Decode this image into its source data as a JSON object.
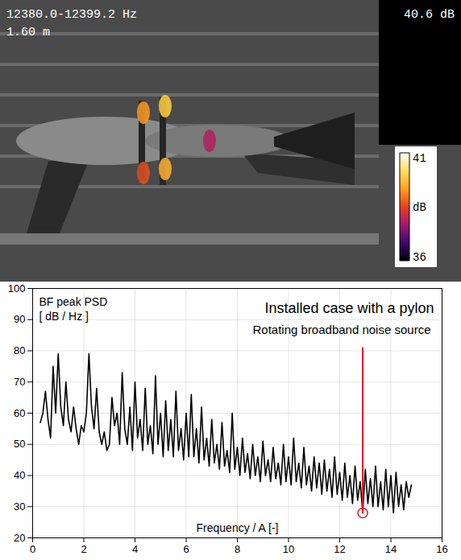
{
  "chart_data": [
    {
      "type": "beamforming_map",
      "annotations": [
        "12380.0-12399.2 Hz",
        "1.60 m",
        "40.6 dB"
      ],
      "colorbar": {
        "label": "dB",
        "range": [
          36,
          41
        ],
        "ticks": [
          36,
          41
        ]
      }
    },
    {
      "type": "line",
      "title": "Installed case with a pylon",
      "y_label": [
        "BF peak PSD",
        "[ dB / Hz ]"
      ],
      "x_label": "Frequency / A [-]",
      "color": "#000000",
      "grid": true,
      "xlim": [
        0,
        16
      ],
      "xticks": [
        0,
        2,
        4,
        6,
        8,
        10,
        12,
        14,
        16
      ],
      "ylim": [
        20,
        100
      ],
      "yticks": [
        20,
        30,
        40,
        50,
        60,
        70,
        80,
        90,
        100
      ],
      "x": [
        0.3,
        0.4,
        0.5,
        0.6,
        0.7,
        0.8,
        0.9,
        1.0,
        1.1,
        1.2,
        1.3,
        1.4,
        1.5,
        1.6,
        1.7,
        1.8,
        1.9,
        2.0,
        2.1,
        2.2,
        2.3,
        2.4,
        2.5,
        2.6,
        2.7,
        2.8,
        2.9,
        3.0,
        3.1,
        3.2,
        3.3,
        3.4,
        3.5,
        3.6,
        3.7,
        3.8,
        3.9,
        4.0,
        4.1,
        4.2,
        4.3,
        4.4,
        4.5,
        4.6,
        4.7,
        4.8,
        4.9,
        5.0,
        5.1,
        5.2,
        5.3,
        5.4,
        5.5,
        5.6,
        5.7,
        5.8,
        5.9,
        6.0,
        6.1,
        6.2,
        6.3,
        6.4,
        6.5,
        6.6,
        6.7,
        6.8,
        6.9,
        7.0,
        7.1,
        7.2,
        7.3,
        7.4,
        7.5,
        7.6,
        7.7,
        7.8,
        7.9,
        8.0,
        8.1,
        8.2,
        8.3,
        8.4,
        8.5,
        8.6,
        8.7,
        8.8,
        8.9,
        9.0,
        9.1,
        9.2,
        9.3,
        9.4,
        9.5,
        9.6,
        9.7,
        9.8,
        9.9,
        10.0,
        10.1,
        10.2,
        10.3,
        10.4,
        10.5,
        10.6,
        10.7,
        10.8,
        10.9,
        11.0,
        11.1,
        11.2,
        11.3,
        11.4,
        11.5,
        11.6,
        11.7,
        11.8,
        11.9,
        12.0,
        12.1,
        12.2,
        12.3,
        12.4,
        12.5,
        12.6,
        12.7,
        12.8,
        12.9,
        13.0,
        13.1,
        13.2,
        13.3,
        13.4,
        13.5,
        13.6,
        13.7,
        13.8,
        13.9,
        14.0,
        14.1,
        14.2,
        14.3,
        14.4,
        14.5,
        14.6,
        14.7,
        14.8
      ],
      "values": [
        57,
        60,
        67,
        58,
        52,
        75,
        60,
        79,
        62,
        56,
        70,
        58,
        54,
        62,
        55,
        50,
        56,
        54,
        60,
        79,
        62,
        55,
        68,
        54,
        50,
        54,
        48,
        50,
        65,
        56,
        60,
        50,
        73,
        55,
        50,
        62,
        48,
        70,
        52,
        58,
        48,
        68,
        50,
        56,
        47,
        72,
        50,
        60,
        46,
        64,
        48,
        58,
        46,
        67,
        48,
        55,
        45,
        60,
        46,
        66,
        46,
        55,
        44,
        62,
        45,
        52,
        43,
        58,
        44,
        50,
        42,
        57,
        43,
        48,
        41,
        60,
        42,
        49,
        40,
        52,
        41,
        47,
        39,
        50,
        40,
        46,
        38,
        51,
        40,
        45,
        38,
        49,
        39,
        44,
        37,
        50,
        38,
        46,
        37,
        52,
        38,
        44,
        36,
        49,
        37,
        43,
        35,
        46,
        36,
        44,
        34,
        45,
        35,
        42,
        33,
        46,
        34,
        41,
        32,
        44,
        33,
        40,
        31,
        43,
        32,
        38,
        28,
        42,
        31,
        39,
        30,
        43,
        30,
        38,
        29,
        42,
        30,
        40,
        28,
        41,
        30,
        37,
        29,
        38,
        33,
        37
      ],
      "annotation": {
        "text": "Rotating broadband noise source",
        "x": 12.9,
        "y": 28,
        "line_top": 81,
        "color": "#e8141c"
      }
    }
  ]
}
